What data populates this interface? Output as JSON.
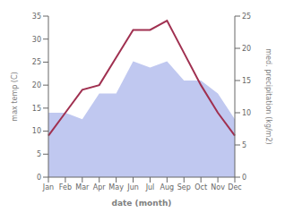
{
  "chart_data": {
    "type": "line",
    "x_label": "date (month)",
    "y_label": "max temp (C)",
    "y2_label": "med. precipitation (kg/m2)",
    "categories": [
      "Jan",
      "Feb",
      "Mar",
      "Apr",
      "May",
      "Jun",
      "Jul",
      "Aug",
      "Sep",
      "Oct",
      "Nov",
      "Dec"
    ],
    "series": [
      {
        "type": "area",
        "axis": "y2",
        "color": "#c0c8f0",
        "values": [
          10,
          10,
          9,
          13,
          13,
          18,
          17,
          18,
          15,
          15,
          13,
          9
        ]
      },
      {
        "type": "line",
        "axis": "y",
        "color": "#a03050",
        "values": [
          9,
          14,
          19,
          20,
          26,
          32,
          32,
          34,
          27,
          20,
          14,
          9
        ]
      }
    ],
    "ylim": [
      0,
      35
    ],
    "yticks": [
      0,
      5,
      10,
      15,
      20,
      25,
      30,
      35
    ],
    "y2lim": [
      0,
      25
    ],
    "y2ticks": [
      0,
      5,
      10,
      15,
      20,
      25
    ],
    "grid": false
  }
}
